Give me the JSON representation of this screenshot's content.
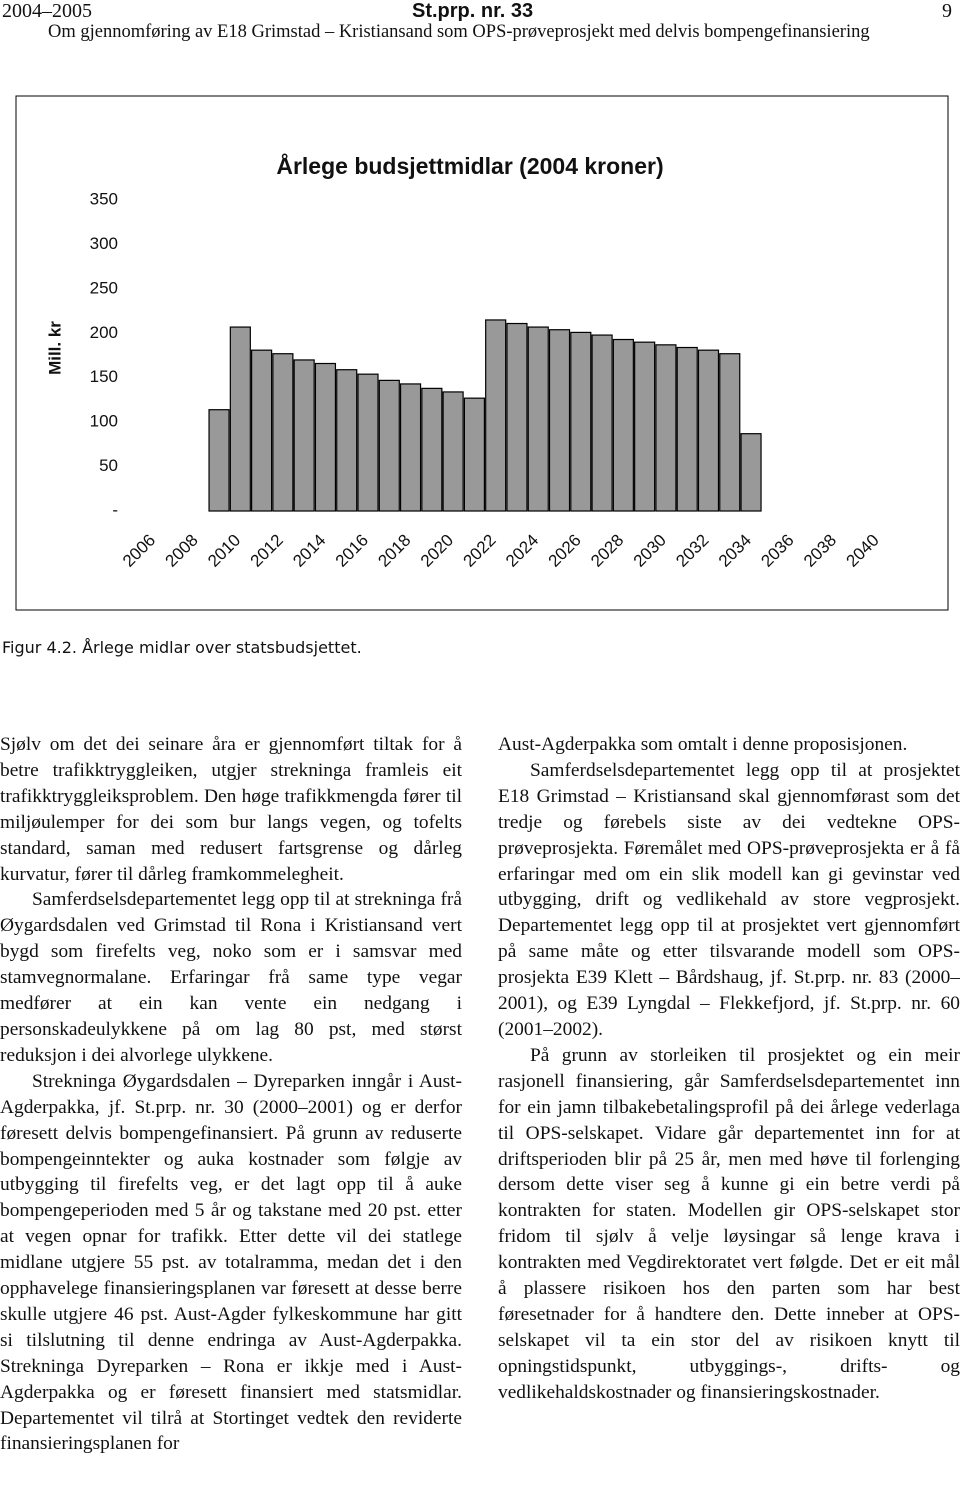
{
  "header": {
    "session": "2004–2005",
    "doc": "St.prp. nr. 33",
    "page": "9",
    "subtitle": "Om gjennomføring av E18 Grimstad – Kristiansand som OPS-prøveprosjekt med delvis bompengefinansiering"
  },
  "chart_data": {
    "type": "bar",
    "title": "Årlege budsjettmidlar (2004 kroner)",
    "ylabel": "Mill. kr",
    "categories": [
      "2006",
      null,
      "2008",
      null,
      "2010",
      null,
      "2012",
      null,
      "2014",
      null,
      "2016",
      null,
      "2018",
      null,
      "2020",
      null,
      "2022",
      null,
      "2024",
      null,
      "2026",
      null,
      "2028",
      null,
      "2030",
      null,
      "2032",
      null,
      "2034",
      null,
      "2036",
      null,
      "2038",
      null,
      "2040"
    ],
    "values": [
      null,
      null,
      null,
      114,
      207,
      181,
      177,
      170,
      166,
      159,
      154,
      147,
      143,
      138,
      134,
      127,
      215,
      211,
      207,
      204,
      201,
      198,
      193,
      190,
      187,
      184,
      181,
      177,
      87,
      null,
      null,
      null,
      null,
      null,
      null
    ],
    "color": "#999999",
    "ylim": [
      0,
      350
    ],
    "yticks": [
      {
        "value": 0,
        "label": "-"
      },
      50,
      100,
      150,
      200,
      250,
      300,
      350
    ],
    "grid": false
  },
  "caption": "Figur 4.2. Årlege midlar over statsbudsjettet.",
  "left_column": [
    "Sjølv om det dei seinare åra er gjennomført tiltak for å betre trafikktryggleiken, utgjer strekninga framleis eit trafikktryggleiksproblem. Den høge trafikkmengda fører til miljøulemper for dei som bur langs vegen, og tofelts standard, saman med redusert fartsgrense og dårleg kurvatur, fører til dårleg framkommelegheit.",
    "Samferdselsdepartementet legg opp til at strekninga frå Øygardsdalen ved Grimstad til Rona i Kristiansand vert bygd som firefelts veg, noko som er i samsvar med stamvegnormalane. Erfaringar frå same type vegar medfører at ein kan vente ein nedgang i personskadeulykkene på om lag 80 pst, med størst reduksjon i dei alvorlege ulykkene.",
    "Strekninga Øygardsdalen – Dyreparken inngår i Aust-Agderpakka, jf. St.prp. nr. 30 (2000–2001) og er derfor føresett delvis bompengefinansiert. På grunn av reduserte bompengeinntekter og auka kostnader som følgje av utbygging til firefelts veg, er det lagt opp til å auke bompengeperioden med 5 år og takstane med 20 pst. etter at vegen opnar for trafikk. Etter dette vil dei statlege midlane utgjere 55 pst. av totalramma, medan det i den opphavelege finansieringsplanen var føresett at desse berre skulle utgjere 46 pst. Aust-Agder fylkeskommune har gitt si tilslutning til denne endringa av Aust-Agderpakka. Strekninga Dyreparken – Rona er ikkje med i Aust-Agderpakka og er føresett finansiert med statsmidlar. Departementet vil tilrå at Stortinget vedtek den reviderte finansieringsplanen for"
  ],
  "right_column": [
    "Aust-Agderpakka som omtalt i denne proposisjonen.",
    "Samferdselsdepartementet legg opp til at prosjektet E18 Grimstad – Kristiansand skal gjennomførast som det tredje og førebels siste av dei vedtekne OPS-prøveprosjekta. Føremålet med OPS-prøveprosjekta er å få erfaringar med om ein slik modell kan gi gevinstar ved utbygging, drift og vedlikehald av store vegprosjekt. Departementet legg opp til at prosjektet vert gjennomført på same måte og etter tilsvarande modell som OPS-prosjekta E39 Klett – Bårdshaug, jf. St.prp. nr. 83 (2000–2001), og E39 Lyngdal – Flekkefjord, jf. St.prp. nr. 60 (2001–2002).",
    "På grunn av storleiken til prosjektet og ein meir rasjonell finansiering, går Samferdselsdepartementet inn for ein jamn tilbakebetalingsprofil på dei årlege vederlaga til OPS-selskapet. Vidare går departementet inn for at driftsperioden blir på 25 år, men med høve til forlenging dersom dette viser seg å kunne gi ein betre verdi på kontrakten for staten. Modellen gir OPS-selskapet stor fridom til sjølv å velje løysingar så lenge krava i kontrakten med Vegdirektoratet vert følgde. Det er eit mål å plassere risikoen hos den parten som har best føresetnader for å handtere den. Dette inneber at OPS-selskapet vil ta ein stor del av risikoen knytt til opningstidspunkt, utbyggings-, drifts- og vedlikehaldskostnader og finansieringskostnader."
  ]
}
